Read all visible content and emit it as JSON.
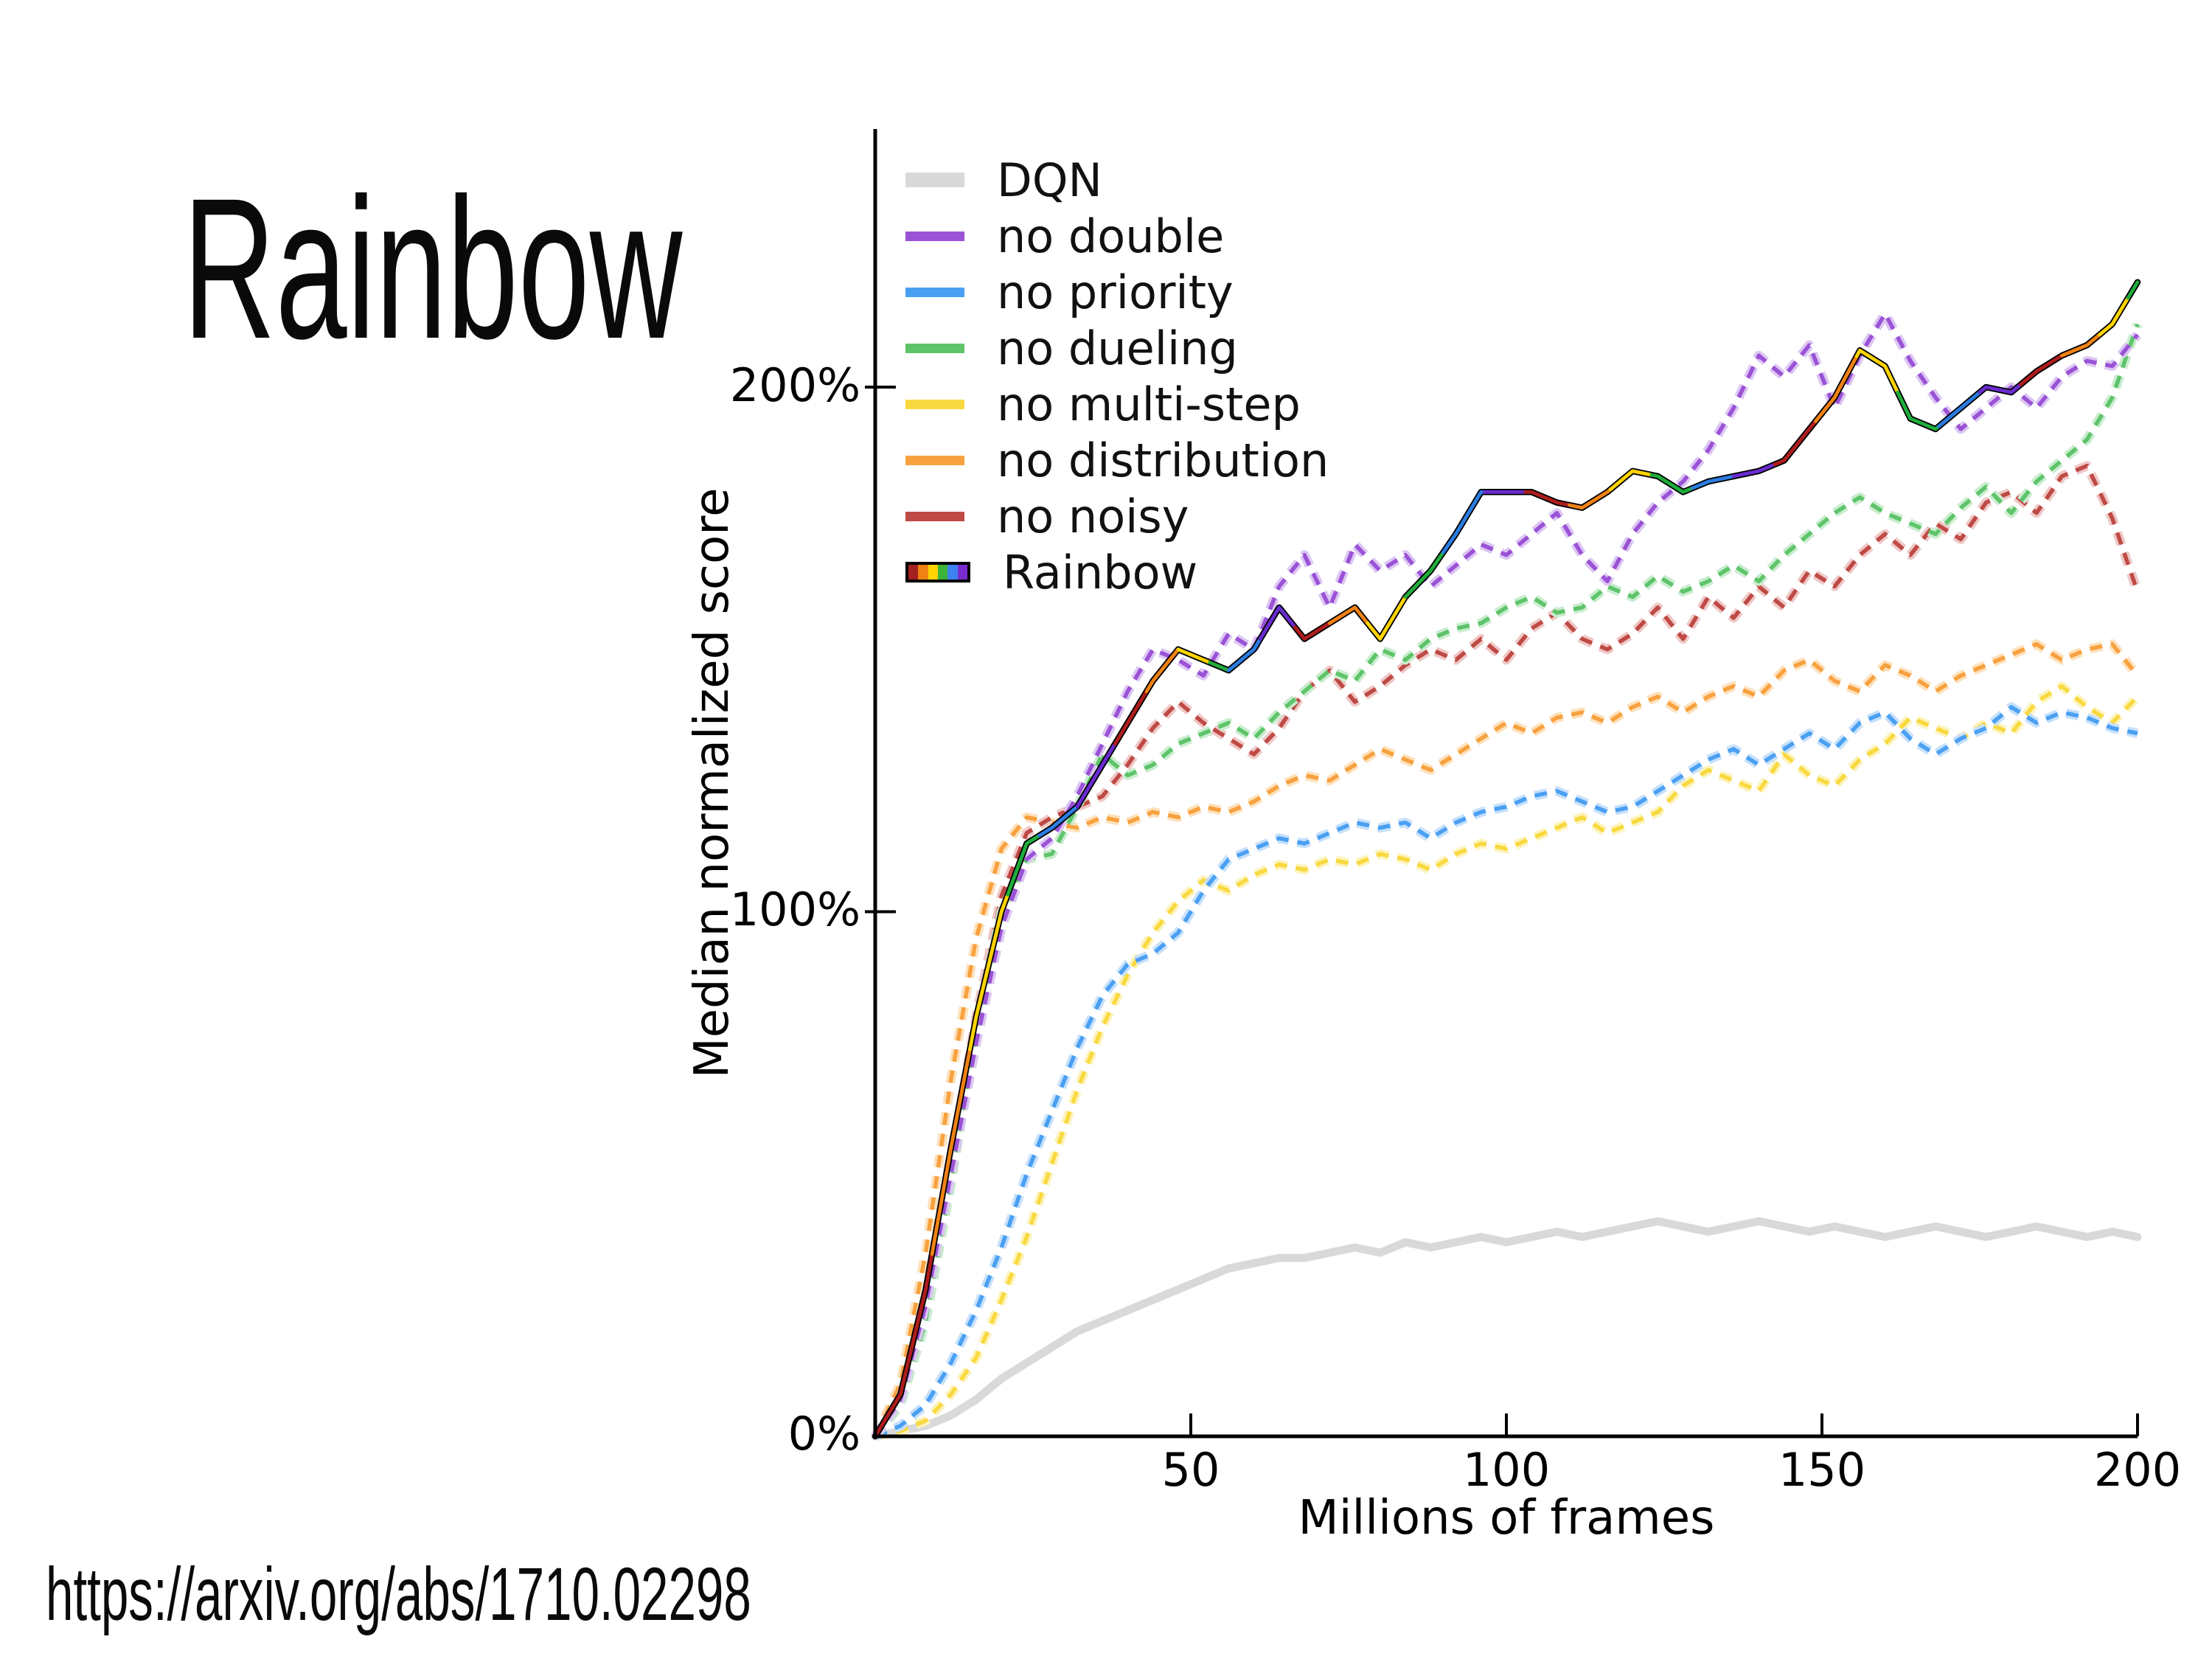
{
  "slide": {
    "title": "Rainbow",
    "source_url": "https://arxiv.org/abs/1710.02298"
  },
  "chart_data": {
    "type": "line",
    "xlabel": "Millions of frames",
    "ylabel": "Median normalized score",
    "xlim": [
      0,
      200
    ],
    "ylim_percent": [
      0,
      249
    ],
    "grid": false,
    "legend_position": "upper-left-inside",
    "background": "#ffffff",
    "axis_color": "#000000",
    "x_ticks": [
      {
        "label": "50",
        "value": 50
      },
      {
        "label": "100",
        "value": 100
      },
      {
        "label": "150",
        "value": 150
      },
      {
        "label": "200",
        "value": 200
      }
    ],
    "y_ticks": [
      {
        "label": "0%",
        "value": 0
      },
      {
        "label": "100%",
        "value": 100
      },
      {
        "label": "200%",
        "value": 200
      }
    ],
    "x_start": 0,
    "x_step": 4,
    "draw_order": [
      0,
      4,
      2,
      5,
      6,
      3,
      1,
      7
    ],
    "series": [
      {
        "name": "DQN",
        "style": "thick",
        "color": "#d9d9d9",
        "values": [
          0,
          1,
          2,
          4,
          7,
          11,
          14,
          17,
          20,
          22,
          24,
          26,
          28,
          30,
          32,
          33,
          34,
          34,
          35,
          36,
          35,
          37,
          36,
          37,
          38,
          37,
          38,
          39,
          38,
          39,
          40,
          41,
          40,
          39,
          40,
          41,
          40,
          39,
          40,
          39,
          38,
          39,
          40,
          39,
          38,
          39,
          40,
          39,
          38,
          39,
          38
        ]
      },
      {
        "name": "no double",
        "style": "dashed",
        "color": "#9a52d6",
        "halo": "#dcc6f2",
        "values": [
          0,
          7,
          25,
          50,
          75,
          97,
          110,
          114,
          122,
          132,
          142,
          150,
          148,
          145,
          153,
          150,
          162,
          168,
          158,
          170,
          165,
          168,
          162,
          166,
          170,
          168,
          172,
          176,
          168,
          163,
          172,
          178,
          182,
          188,
          196,
          206,
          202,
          208,
          196,
          206,
          214,
          205,
          198,
          192,
          196,
          200,
          196,
          202,
          205,
          204,
          210
        ]
      },
      {
        "name": "no priority",
        "style": "dashed",
        "color": "#4aa0f2",
        "halo": "#c6e0fb",
        "values": [
          0,
          2,
          6,
          14,
          24,
          36,
          50,
          62,
          74,
          84,
          90,
          92,
          96,
          104,
          110,
          112,
          114,
          113,
          115,
          117,
          116,
          117,
          114,
          117,
          119,
          120,
          122,
          123,
          121,
          119,
          120,
          123,
          126,
          129,
          131,
          128,
          131,
          134,
          131,
          136,
          138,
          133,
          130,
          133,
          135,
          139,
          136,
          138,
          137,
          135,
          134
        ]
      },
      {
        "name": "no dueling",
        "style": "dashed",
        "color": "#5ec46a",
        "halo": "#c9ecce",
        "values": [
          0,
          6,
          22,
          48,
          78,
          100,
          110,
          111,
          120,
          130,
          126,
          128,
          132,
          134,
          136,
          133,
          138,
          142,
          146,
          144,
          150,
          148,
          152,
          154,
          155,
          158,
          160,
          157,
          158,
          162,
          160,
          164,
          161,
          163,
          166,
          163,
          168,
          172,
          176,
          179,
          176,
          174,
          172,
          177,
          181,
          176,
          182,
          186,
          190,
          198,
          212
        ]
      },
      {
        "name": "no multi-step",
        "style": "dashed",
        "color": "#f8d93f",
        "halo": "#fdf3bc",
        "values": [
          0,
          1,
          3,
          8,
          15,
          26,
          38,
          52,
          66,
          78,
          88,
          96,
          102,
          106,
          104,
          107,
          109,
          108,
          110,
          109,
          111,
          110,
          108,
          111,
          113,
          112,
          114,
          116,
          118,
          115,
          117,
          119,
          124,
          127,
          125,
          123,
          130,
          126,
          124,
          129,
          132,
          137,
          135,
          133,
          136,
          134,
          140,
          143,
          139,
          136,
          141
        ]
      },
      {
        "name": "no distribution",
        "style": "dashed",
        "color": "#f8a13f",
        "halo": "#fde1bc",
        "values": [
          0,
          10,
          35,
          68,
          95,
          112,
          118,
          117,
          116,
          118,
          117,
          119,
          118,
          120,
          119,
          121,
          124,
          126,
          125,
          128,
          131,
          129,
          127,
          130,
          133,
          136,
          134,
          137,
          138,
          136,
          139,
          141,
          138,
          141,
          143,
          141,
          146,
          148,
          144,
          142,
          147,
          145,
          142,
          145,
          147,
          149,
          151,
          148,
          150,
          151,
          145
        ]
      },
      {
        "name": "no noisy",
        "style": "dashed",
        "color": "#bf4a45",
        "halo": "#eec8c6",
        "values": [
          0,
          7,
          26,
          52,
          80,
          103,
          115,
          118,
          120,
          122,
          128,
          135,
          140,
          136,
          133,
          130,
          135,
          142,
          146,
          140,
          143,
          147,
          150,
          148,
          152,
          148,
          154,
          157,
          152,
          150,
          153,
          158,
          152,
          160,
          156,
          162,
          158,
          165,
          162,
          168,
          172,
          168,
          174,
          171,
          178,
          180,
          176,
          183,
          185,
          175,
          161
        ]
      },
      {
        "name": "Rainbow",
        "style": "rainbow",
        "color": "#000000",
        "values": [
          0,
          8,
          28,
          55,
          80,
          100,
          113,
          116,
          120,
          128,
          136,
          144,
          150,
          148,
          146,
          150,
          158,
          152,
          155,
          158,
          152,
          160,
          165,
          172,
          180,
          180,
          180,
          178,
          177,
          180,
          184,
          183,
          180,
          182,
          183,
          184,
          186,
          192,
          198,
          207,
          204,
          194,
          192,
          196,
          200,
          199,
          203,
          206,
          208,
          212,
          220
        ]
      }
    ],
    "rainbow_line": {
      "outline_color": "#000000",
      "palette": {
        "darkred": "#ad1d1d",
        "orange": "#f08214",
        "yellow": "#ffd400",
        "green": "#1fad3c",
        "blue": "#2b7de1",
        "purple": "#6a2bd0"
      },
      "segments": [
        [
          0,
          9,
          "darkred"
        ],
        [
          9,
          15,
          "orange"
        ],
        [
          15,
          21,
          "yellow"
        ],
        [
          21,
          26,
          "green"
        ],
        [
          26,
          32,
          "blue"
        ],
        [
          32,
          38,
          "purple"
        ],
        [
          38,
          43,
          "darkred"
        ],
        [
          43,
          48,
          "orange"
        ],
        [
          48,
          53,
          "yellow"
        ],
        [
          53,
          56,
          "green"
        ],
        [
          56,
          61,
          "blue"
        ],
        [
          61,
          66.5,
          "purple"
        ],
        [
          66.5,
          72,
          "darkred"
        ],
        [
          72,
          78,
          "orange"
        ],
        [
          78,
          84,
          "yellow"
        ],
        [
          84,
          90,
          "green"
        ],
        [
          90,
          96.5,
          "blue"
        ],
        [
          96.5,
          103,
          "purple"
        ],
        [
          103,
          110,
          "darkred"
        ],
        [
          110,
          116.5,
          "orange"
        ],
        [
          116.5,
          123,
          "yellow"
        ],
        [
          123,
          129.5,
          "green"
        ],
        [
          129.5,
          136,
          "blue"
        ],
        [
          136,
          142.5,
          "purple"
        ],
        [
          142.5,
          149,
          "darkred"
        ],
        [
          149,
          155.5,
          "orange"
        ],
        [
          155.5,
          162,
          "yellow"
        ],
        [
          162,
          168.5,
          "green"
        ],
        [
          168.5,
          175,
          "blue"
        ],
        [
          175,
          181.5,
          "purple"
        ],
        [
          181.5,
          188,
          "darkred"
        ],
        [
          188,
          194,
          "orange"
        ],
        [
          194,
          198.5,
          "yellow"
        ],
        [
          198.5,
          200,
          "green"
        ]
      ]
    },
    "rainbow_swatch": [
      "#a32020",
      "#f08214",
      "#ffd400",
      "#3cb43c",
      "#3c82f0",
      "#7a2bd0"
    ]
  }
}
